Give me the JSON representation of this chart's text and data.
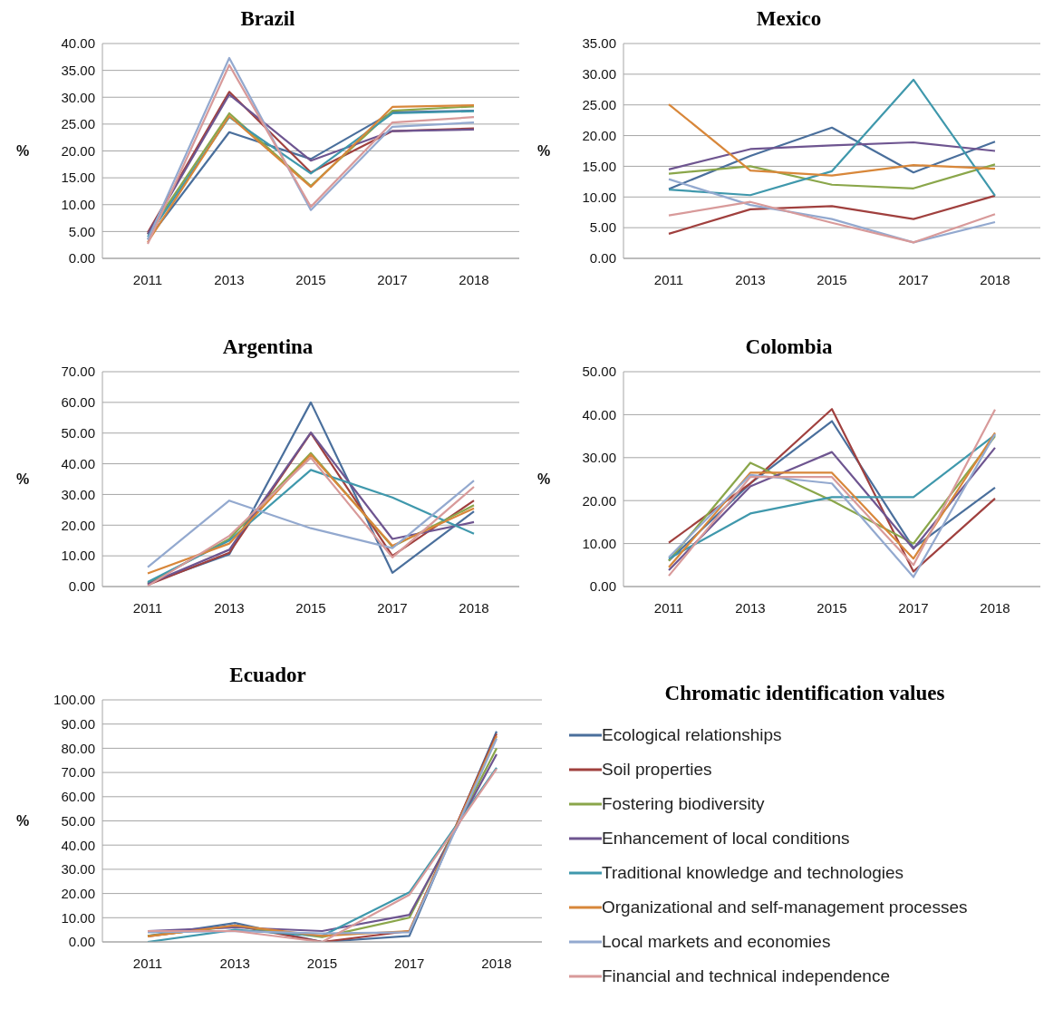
{
  "chart_data": [
    {
      "type": "line",
      "title": "Brazil",
      "ylabel": "%",
      "categories": [
        "2011",
        "2013",
        "2015",
        "2017",
        "2018"
      ],
      "ylim": [
        0,
        40
      ],
      "yticks": [
        {
          "value": 0,
          "label": "0.00"
        },
        {
          "value": 5,
          "label": "5.00"
        },
        {
          "value": 10,
          "label": "10.00"
        },
        {
          "value": 15,
          "label": "15.00"
        },
        {
          "value": 20,
          "label": "20.00"
        },
        {
          "value": 25,
          "label": "25.00"
        },
        {
          "value": 30,
          "label": "30.00"
        },
        {
          "value": 35,
          "label": "35.00"
        },
        {
          "value": 40,
          "label": "40.00"
        }
      ],
      "grid": "y",
      "marker": "none",
      "line_style": "solid",
      "series": [
        {
          "color": "#4a6f9c",
          "values": [
            3.5,
            23.5,
            18.5,
            27.2,
            27.5
          ]
        },
        {
          "color": "#a0403e",
          "values": [
            4.8,
            31,
            16,
            23.7,
            24.2
          ]
        },
        {
          "color": "#8aa64a",
          "values": [
            4.5,
            27,
            13.5,
            27.5,
            28.3
          ]
        },
        {
          "color": "#6e5590",
          "values": [
            4.5,
            30.5,
            18.2,
            23.7,
            24
          ]
        },
        {
          "color": "#3f98ac",
          "values": [
            4,
            26.3,
            15.8,
            27,
            27.4
          ]
        },
        {
          "color": "#d8873a",
          "values": [
            3,
            26.5,
            13.3,
            28.2,
            28.5
          ]
        },
        {
          "color": "#93a9cf",
          "values": [
            3.5,
            37.3,
            9,
            24.5,
            25.3
          ]
        },
        {
          "color": "#d89a9a",
          "values": [
            2.7,
            36,
            9.6,
            25.3,
            26.3
          ]
        }
      ]
    },
    {
      "type": "line",
      "title": "Mexico",
      "ylabel": "%",
      "categories": [
        "2011",
        "2013",
        "2015",
        "2017",
        "2018"
      ],
      "ylim": [
        0,
        35
      ],
      "yticks": [
        {
          "value": 0,
          "label": "0.00"
        },
        {
          "value": 5,
          "label": "5.00"
        },
        {
          "value": 10,
          "label": "10.00"
        },
        {
          "value": 15,
          "label": "15.00"
        },
        {
          "value": 20,
          "label": "20.00"
        },
        {
          "value": 25,
          "label": "25.00"
        },
        {
          "value": 30,
          "label": "30.00"
        },
        {
          "value": 35,
          "label": "35.00"
        }
      ],
      "grid": "y",
      "marker": "none",
      "line_style": "solid",
      "series": [
        {
          "color": "#4a6f9c",
          "values": [
            11.3,
            16.7,
            21.3,
            14,
            19
          ]
        },
        {
          "color": "#a0403e",
          "values": [
            4,
            8,
            8.5,
            6.4,
            10.2
          ]
        },
        {
          "color": "#8aa64a",
          "values": [
            13.8,
            15,
            12,
            11.4,
            15.3
          ]
        },
        {
          "color": "#6e5590",
          "values": [
            14.5,
            17.8,
            18.4,
            18.9,
            17.5
          ]
        },
        {
          "color": "#3f98ac",
          "values": [
            11.2,
            10.3,
            14.2,
            29.1,
            10.2
          ]
        },
        {
          "color": "#d8873a",
          "values": [
            25.1,
            14.3,
            13.5,
            15.2,
            14.6
          ]
        },
        {
          "color": "#93a9cf",
          "values": [
            12.9,
            8.7,
            6.4,
            2.6,
            5.9
          ]
        },
        {
          "color": "#d89a9a",
          "values": [
            7,
            9.2,
            5.8,
            2.6,
            7.2
          ]
        }
      ]
    },
    {
      "type": "line",
      "title": "Argentina",
      "ylabel": "%",
      "categories": [
        "2011",
        "2013",
        "2015",
        "2017",
        "2018"
      ],
      "ylim": [
        0,
        70
      ],
      "yticks": [
        {
          "value": 0,
          "label": "0.00"
        },
        {
          "value": 10,
          "label": "10.00"
        },
        {
          "value": 20,
          "label": "20.00"
        },
        {
          "value": 30,
          "label": "30.00"
        },
        {
          "value": 40,
          "label": "40.00"
        },
        {
          "value": 50,
          "label": "50.00"
        },
        {
          "value": 60,
          "label": "60.00"
        },
        {
          "value": 70,
          "label": "70.00"
        }
      ],
      "grid": "y",
      "marker": "none",
      "line_style": "solid",
      "series": [
        {
          "color": "#4a6f9c",
          "values": [
            1,
            10.5,
            60,
            4.5,
            24.5
          ]
        },
        {
          "color": "#a0403e",
          "values": [
            0.5,
            11,
            50,
            10,
            28
          ]
        },
        {
          "color": "#8aa64a",
          "values": [
            1,
            15.5,
            43.5,
            13,
            26.5
          ]
        },
        {
          "color": "#6e5590",
          "values": [
            0.8,
            12,
            50.2,
            15.5,
            21
          ]
        },
        {
          "color": "#3f98ac",
          "values": [
            1.5,
            15,
            38,
            29,
            17.2
          ]
        },
        {
          "color": "#d8873a",
          "values": [
            4.3,
            14,
            43,
            13.3,
            25.5
          ]
        },
        {
          "color": "#93a9cf",
          "values": [
            6.3,
            28,
            19,
            12.5,
            34.5
          ]
        },
        {
          "color": "#d89a9a",
          "values": [
            0.2,
            16.5,
            42,
            9.5,
            32.5
          ]
        }
      ]
    },
    {
      "type": "line",
      "title": "Colombia",
      "ylabel": "%",
      "categories": [
        "2011",
        "2013",
        "2015",
        "2017",
        "2018"
      ],
      "ylim": [
        0,
        50
      ],
      "yticks": [
        {
          "value": 0,
          "label": "0.00"
        },
        {
          "value": 10,
          "label": "10.00"
        },
        {
          "value": 20,
          "label": "20.00"
        },
        {
          "value": 30,
          "label": "30.00"
        },
        {
          "value": 40,
          "label": "40.00"
        },
        {
          "value": 50,
          "label": "50.00"
        }
      ],
      "grid": "y",
      "marker": "none",
      "line_style": "solid",
      "series": [
        {
          "color": "#4a6f9c",
          "values": [
            6,
            24,
            38.5,
            9,
            23
          ]
        },
        {
          "color": "#a0403e",
          "values": [
            10.2,
            24,
            41.3,
            3.5,
            20.5
          ]
        },
        {
          "color": "#8aa64a",
          "values": [
            6,
            28.8,
            20,
            10,
            35
          ]
        },
        {
          "color": "#6e5590",
          "values": [
            3.8,
            23.3,
            31.3,
            8.8,
            32.3
          ]
        },
        {
          "color": "#3f98ac",
          "values": [
            6.5,
            17,
            20.8,
            20.8,
            35.3
          ]
        },
        {
          "color": "#d8873a",
          "values": [
            4.5,
            26.5,
            26.5,
            6.5,
            35.8
          ]
        },
        {
          "color": "#93a9cf",
          "values": [
            6.8,
            26,
            24,
            2.2,
            35.5
          ]
        },
        {
          "color": "#d89a9a",
          "values": [
            2.5,
            25.5,
            25.5,
            5,
            41.2
          ]
        }
      ]
    },
    {
      "type": "line",
      "title": "Ecuador",
      "ylabel": "%",
      "legend_title": "Chromatic identification values",
      "legend": "right",
      "categories": [
        "2011",
        "2013",
        "2015",
        "2017",
        "2018"
      ],
      "ylim": [
        0,
        100
      ],
      "yticks": [
        {
          "value": 0,
          "label": "0.00"
        },
        {
          "value": 10,
          "label": "10.00"
        },
        {
          "value": 20,
          "label": "20.00"
        },
        {
          "value": 30,
          "label": "30.00"
        },
        {
          "value": 40,
          "label": "40.00"
        },
        {
          "value": 50,
          "label": "50.00"
        },
        {
          "value": 60,
          "label": "60.00"
        },
        {
          "value": 70,
          "label": "70.00"
        },
        {
          "value": 80,
          "label": "80.00"
        },
        {
          "value": 90,
          "label": "90.00"
        },
        {
          "value": 100,
          "label": "100.00"
        }
      ],
      "grid": "y",
      "marker": "none",
      "line_style": "solid",
      "series": [
        {
          "name": "Ecological relationships",
          "color": "#4a6f9c",
          "values": [
            2.5,
            7.8,
            0,
            2.5,
            87
          ]
        },
        {
          "name": "Soil properties",
          "color": "#a0403e",
          "values": [
            2.3,
            6.8,
            0,
            4.5,
            86
          ]
        },
        {
          "name": "Fostering biodiversity",
          "color": "#8aa64a",
          "values": [
            2.5,
            6.5,
            2,
            10,
            80
          ]
        },
        {
          "name": "Enhancement of local conditions",
          "color": "#6e5590",
          "values": [
            4.5,
            6,
            4.5,
            11.2,
            77.5
          ]
        },
        {
          "name": "Traditional knowledge and technologies",
          "color": "#3f98ac",
          "values": [
            0,
            5,
            2.5,
            20.5,
            72
          ]
        },
        {
          "name": "Organizational and self-management processes",
          "color": "#d8873a",
          "values": [
            2.3,
            6.8,
            2.5,
            4.5,
            85
          ]
        },
        {
          "name": "Local markets and economies",
          "color": "#93a9cf",
          "values": [
            4,
            4.5,
            3.5,
            4,
            84
          ]
        },
        {
          "name": "Financial and technical independence",
          "color": "#d89a9a",
          "values": [
            4.5,
            4.5,
            0,
            19.5,
            71.5
          ]
        }
      ]
    }
  ]
}
